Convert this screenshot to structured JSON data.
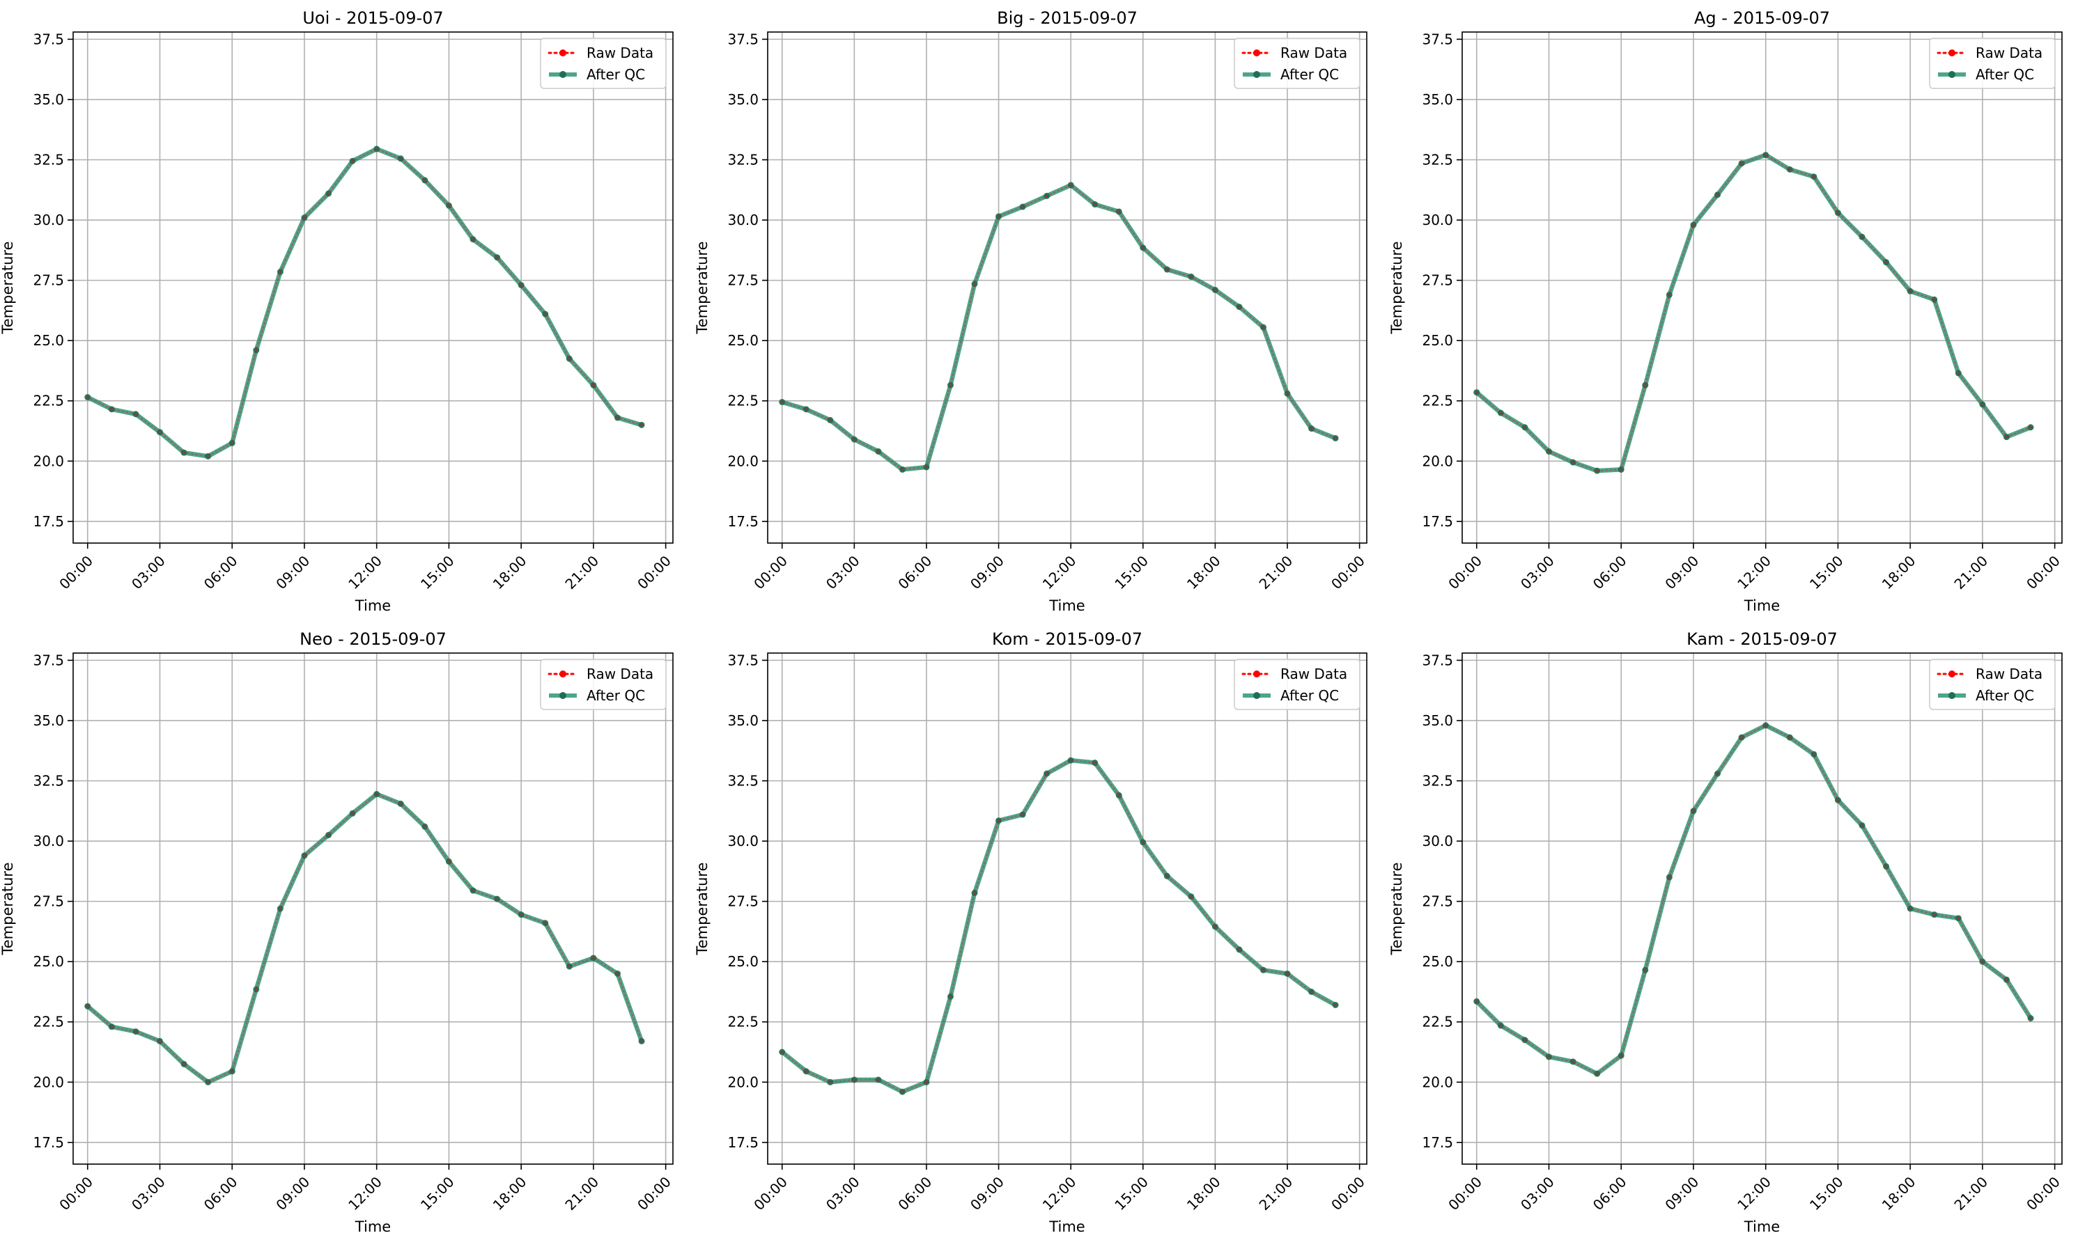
{
  "legend": {
    "raw_label": "Raw Data",
    "qc_label": "After QC"
  },
  "colors": {
    "raw": "#ff0000",
    "qc": "#2e9577",
    "qc_marker": "#1f6e55",
    "grid": "#b0b0b0",
    "axis": "#000000"
  },
  "chart_data": [
    {
      "type": "line",
      "title": "Uoi - 2015-09-07",
      "xlabel": "Time",
      "ylabel": "Temperature",
      "x": [
        "00:00",
        "01:00",
        "02:00",
        "03:00",
        "04:00",
        "05:00",
        "06:00",
        "07:00",
        "08:00",
        "09:00",
        "10:00",
        "11:00",
        "12:00",
        "13:00",
        "14:00",
        "15:00",
        "16:00",
        "17:00",
        "18:00",
        "19:00",
        "20:00",
        "21:00",
        "22:00",
        "23:00"
      ],
      "xticks": [
        "00:00",
        "03:00",
        "06:00",
        "09:00",
        "12:00",
        "15:00",
        "18:00",
        "21:00",
        "00:00"
      ],
      "yticks": [
        "17.5",
        "20.0",
        "22.5",
        "25.0",
        "27.5",
        "30.0",
        "32.5",
        "35.0",
        "37.5"
      ],
      "ylim": [
        16.6,
        37.8
      ],
      "grid": true,
      "legend_position": "top-right",
      "series": [
        {
          "name": "Raw Data",
          "values": [
            22.65,
            22.15,
            21.95,
            21.2,
            20.35,
            20.2,
            20.75,
            24.6,
            27.85,
            30.1,
            31.1,
            32.45,
            32.95,
            32.55,
            31.65,
            30.6,
            29.2,
            28.45,
            27.3,
            26.1,
            24.25,
            23.15,
            21.8,
            21.5
          ]
        },
        {
          "name": "After QC",
          "values": [
            22.65,
            22.15,
            21.95,
            21.2,
            20.35,
            20.2,
            20.75,
            24.6,
            27.85,
            30.1,
            31.1,
            32.45,
            32.95,
            32.55,
            31.65,
            30.6,
            29.2,
            28.45,
            27.3,
            26.1,
            24.25,
            23.15,
            21.8,
            21.5
          ]
        }
      ]
    },
    {
      "type": "line",
      "title": "Big - 2015-09-07",
      "xlabel": "Time",
      "ylabel": "Temperature",
      "x": [
        "00:00",
        "01:00",
        "02:00",
        "03:00",
        "04:00",
        "05:00",
        "06:00",
        "07:00",
        "08:00",
        "09:00",
        "10:00",
        "11:00",
        "12:00",
        "13:00",
        "14:00",
        "15:00",
        "16:00",
        "17:00",
        "18:00",
        "19:00",
        "20:00",
        "21:00",
        "22:00",
        "23:00"
      ],
      "xticks": [
        "00:00",
        "03:00",
        "06:00",
        "09:00",
        "12:00",
        "15:00",
        "18:00",
        "21:00",
        "00:00"
      ],
      "yticks": [
        "17.5",
        "20.0",
        "22.5",
        "25.0",
        "27.5",
        "30.0",
        "32.5",
        "35.0",
        "37.5"
      ],
      "ylim": [
        16.6,
        37.8
      ],
      "grid": true,
      "legend_position": "top-right",
      "series": [
        {
          "name": "Raw Data",
          "values": [
            22.45,
            22.15,
            21.7,
            20.9,
            20.4,
            19.65,
            19.75,
            23.15,
            27.35,
            30.15,
            30.55,
            31.0,
            31.45,
            30.65,
            30.35,
            28.85,
            27.95,
            27.65,
            27.1,
            26.4,
            25.55,
            22.8,
            21.35,
            20.95
          ]
        },
        {
          "name": "After QC",
          "values": [
            22.45,
            22.15,
            21.7,
            20.9,
            20.4,
            19.65,
            19.75,
            23.15,
            27.35,
            30.15,
            30.55,
            31.0,
            31.45,
            30.65,
            30.35,
            28.85,
            27.95,
            27.65,
            27.1,
            26.4,
            25.55,
            22.8,
            21.35,
            20.95
          ]
        }
      ]
    },
    {
      "type": "line",
      "title": "Ag - 2015-09-07",
      "xlabel": "Time",
      "ylabel": "Temperature",
      "x": [
        "00:00",
        "01:00",
        "02:00",
        "03:00",
        "04:00",
        "05:00",
        "06:00",
        "07:00",
        "08:00",
        "09:00",
        "10:00",
        "11:00",
        "12:00",
        "13:00",
        "14:00",
        "15:00",
        "16:00",
        "17:00",
        "18:00",
        "19:00",
        "20:00",
        "21:00",
        "22:00",
        "23:00"
      ],
      "xticks": [
        "00:00",
        "03:00",
        "06:00",
        "09:00",
        "12:00",
        "15:00",
        "18:00",
        "21:00",
        "00:00"
      ],
      "yticks": [
        "17.5",
        "20.0",
        "22.5",
        "25.0",
        "27.5",
        "30.0",
        "32.5",
        "35.0",
        "37.5"
      ],
      "ylim": [
        16.6,
        37.8
      ],
      "grid": true,
      "legend_position": "top-right",
      "series": [
        {
          "name": "Raw Data",
          "values": [
            22.85,
            22.0,
            21.4,
            20.4,
            19.95,
            19.6,
            19.65,
            23.15,
            26.9,
            29.8,
            31.05,
            32.35,
            32.7,
            32.1,
            31.8,
            30.3,
            29.3,
            28.25,
            27.05,
            26.7,
            23.65,
            22.35,
            21.0,
            21.4
          ]
        },
        {
          "name": "After QC",
          "values": [
            22.85,
            22.0,
            21.4,
            20.4,
            19.95,
            19.6,
            19.65,
            23.15,
            26.9,
            29.8,
            31.05,
            32.35,
            32.7,
            32.1,
            31.8,
            30.3,
            29.3,
            28.25,
            27.05,
            26.7,
            23.65,
            22.35,
            21.0,
            21.4
          ]
        }
      ]
    },
    {
      "type": "line",
      "title": "Neo - 2015-09-07",
      "xlabel": "Time",
      "ylabel": "Temperature",
      "x": [
        "00:00",
        "01:00",
        "02:00",
        "03:00",
        "04:00",
        "05:00",
        "06:00",
        "07:00",
        "08:00",
        "09:00",
        "10:00",
        "11:00",
        "12:00",
        "13:00",
        "14:00",
        "15:00",
        "16:00",
        "17:00",
        "18:00",
        "19:00",
        "20:00",
        "21:00",
        "22:00",
        "23:00"
      ],
      "xticks": [
        "00:00",
        "03:00",
        "06:00",
        "09:00",
        "12:00",
        "15:00",
        "18:00",
        "21:00",
        "00:00"
      ],
      "yticks": [
        "17.5",
        "20.0",
        "22.5",
        "25.0",
        "27.5",
        "30.0",
        "32.5",
        "35.0",
        "37.5"
      ],
      "ylim": [
        16.6,
        37.8
      ],
      "grid": true,
      "legend_position": "top-right",
      "series": [
        {
          "name": "Raw Data",
          "values": [
            23.15,
            22.3,
            22.1,
            21.7,
            20.75,
            20.0,
            20.45,
            23.85,
            27.2,
            29.4,
            30.25,
            31.15,
            31.95,
            31.55,
            30.6,
            29.15,
            27.95,
            27.6,
            26.95,
            26.6,
            24.8,
            25.15,
            24.5,
            21.7
          ]
        },
        {
          "name": "After QC",
          "values": [
            23.15,
            22.3,
            22.1,
            21.7,
            20.75,
            20.0,
            20.45,
            23.85,
            27.2,
            29.4,
            30.25,
            31.15,
            31.95,
            31.55,
            30.6,
            29.15,
            27.95,
            27.6,
            26.95,
            26.6,
            24.8,
            25.15,
            24.5,
            21.7
          ]
        }
      ]
    },
    {
      "type": "line",
      "title": "Kom - 2015-09-07",
      "xlabel": "Time",
      "ylabel": "Temperature",
      "x": [
        "00:00",
        "01:00",
        "02:00",
        "03:00",
        "04:00",
        "05:00",
        "06:00",
        "07:00",
        "08:00",
        "09:00",
        "10:00",
        "11:00",
        "12:00",
        "13:00",
        "14:00",
        "15:00",
        "16:00",
        "17:00",
        "18:00",
        "19:00",
        "20:00",
        "21:00",
        "22:00",
        "23:00"
      ],
      "xticks": [
        "00:00",
        "03:00",
        "06:00",
        "09:00",
        "12:00",
        "15:00",
        "18:00",
        "21:00",
        "00:00"
      ],
      "yticks": [
        "17.5",
        "20.0",
        "22.5",
        "25.0",
        "27.5",
        "30.0",
        "32.5",
        "35.0",
        "37.5"
      ],
      "ylim": [
        16.6,
        37.8
      ],
      "grid": true,
      "legend_position": "top-right",
      "series": [
        {
          "name": "Raw Data",
          "values": [
            21.25,
            20.45,
            20.0,
            20.1,
            20.1,
            19.6,
            20.0,
            23.55,
            27.85,
            30.85,
            31.1,
            32.8,
            33.35,
            33.25,
            31.9,
            29.95,
            28.55,
            27.7,
            26.45,
            25.5,
            24.65,
            24.5,
            23.75,
            23.2
          ]
        },
        {
          "name": "After QC",
          "values": [
            21.25,
            20.45,
            20.0,
            20.1,
            20.1,
            19.6,
            20.0,
            23.55,
            27.85,
            30.85,
            31.1,
            32.8,
            33.35,
            33.25,
            31.9,
            29.95,
            28.55,
            27.7,
            26.45,
            25.5,
            24.65,
            24.5,
            23.75,
            23.2
          ]
        }
      ]
    },
    {
      "type": "line",
      "title": "Kam - 2015-09-07",
      "xlabel": "Time",
      "ylabel": "Temperature",
      "x": [
        "00:00",
        "01:00",
        "02:00",
        "03:00",
        "04:00",
        "05:00",
        "06:00",
        "07:00",
        "08:00",
        "09:00",
        "10:00",
        "11:00",
        "12:00",
        "13:00",
        "14:00",
        "15:00",
        "16:00",
        "17:00",
        "18:00",
        "19:00",
        "20:00",
        "21:00",
        "22:00",
        "23:00"
      ],
      "xticks": [
        "00:00",
        "03:00",
        "06:00",
        "09:00",
        "12:00",
        "15:00",
        "18:00",
        "21:00",
        "00:00"
      ],
      "yticks": [
        "17.5",
        "20.0",
        "22.5",
        "25.0",
        "27.5",
        "30.0",
        "32.5",
        "35.0",
        "37.5"
      ],
      "ylim": [
        16.6,
        37.8
      ],
      "grid": true,
      "legend_position": "top-right",
      "series": [
        {
          "name": "Raw Data",
          "values": [
            23.35,
            22.35,
            21.75,
            21.05,
            20.85,
            20.35,
            21.1,
            24.65,
            28.5,
            31.25,
            32.8,
            34.3,
            34.8,
            34.3,
            33.6,
            31.7,
            30.65,
            28.95,
            27.2,
            26.95,
            26.8,
            25.0,
            24.25,
            22.65
          ]
        },
        {
          "name": "After QC",
          "values": [
            23.35,
            22.35,
            21.75,
            21.05,
            20.85,
            20.35,
            21.1,
            24.65,
            28.5,
            31.25,
            32.8,
            34.3,
            34.8,
            34.3,
            33.6,
            31.7,
            30.65,
            28.95,
            27.2,
            26.95,
            26.8,
            25.0,
            24.25,
            22.65
          ]
        }
      ]
    }
  ]
}
